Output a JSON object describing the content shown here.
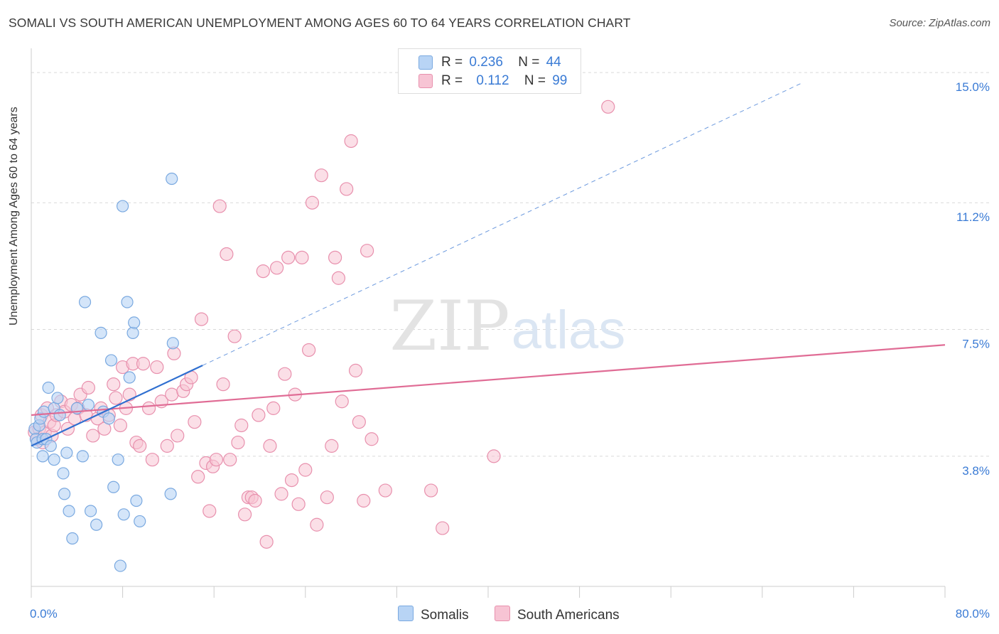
{
  "title": "SOMALI VS SOUTH AMERICAN UNEMPLOYMENT AMONG AGES 60 TO 64 YEARS CORRELATION CHART",
  "source": "Source: ZipAtlas.com",
  "watermark": {
    "zip": "ZIP",
    "atlas": "atlas"
  },
  "legend": {
    "row1": {
      "r_label": "R =",
      "r_value": "0.236",
      "n_label": "N =",
      "n_value": "44"
    },
    "row2": {
      "r_label": "R =",
      "r_value": "0.112",
      "n_label": "N =",
      "n_value": "99"
    }
  },
  "colors": {
    "somali_fill": "#b8d4f5",
    "somali_stroke": "#7aa9e0",
    "somali_line": "#2f6fd0",
    "sa_fill": "#f7c4d4",
    "sa_stroke": "#e890ad",
    "sa_line": "#e06c95",
    "grid": "#d9d9d9",
    "axis_label": "#3a7bd5"
  },
  "chart_data": {
    "type": "scatter",
    "title": "SOMALI VS SOUTH AMERICAN UNEMPLOYMENT AMONG AGES 60 TO 64 YEARS CORRELATION CHART",
    "xlabel": "",
    "ylabel": "Unemployment Among Ages 60 to 64 years",
    "xlim": [
      0,
      80
    ],
    "ylim": [
      0,
      15.5
    ],
    "x_tick_labels": [
      "0.0%",
      "80.0%"
    ],
    "y_ticks": [
      3.8,
      7.5,
      11.2,
      15.0
    ],
    "y_tick_labels": [
      "3.8%",
      "7.5%",
      "11.2%",
      "15.0%"
    ],
    "series": [
      {
        "name": "Somalis",
        "R": 0.236,
        "N": 44,
        "trend": {
          "x0": 0.0,
          "y0": 4.1,
          "x1": 15.0,
          "y1": 6.45,
          "dashed_to_x": 67.5,
          "dashed_to_y": 14.7
        },
        "points": [
          [
            0.3,
            4.6
          ],
          [
            0.4,
            4.3
          ],
          [
            0.5,
            4.2
          ],
          [
            0.7,
            4.7
          ],
          [
            0.8,
            4.9
          ],
          [
            1.0,
            4.3
          ],
          [
            1.1,
            5.1
          ],
          [
            1.3,
            4.3
          ],
          [
            1.5,
            5.8
          ],
          [
            1.7,
            4.1
          ],
          [
            2.0,
            5.2
          ],
          [
            2.3,
            5.5
          ],
          [
            2.5,
            5.0
          ],
          [
            1.0,
            3.8
          ],
          [
            2.0,
            3.7
          ],
          [
            2.8,
            3.3
          ],
          [
            2.9,
            2.7
          ],
          [
            3.1,
            3.9
          ],
          [
            3.3,
            2.2
          ],
          [
            3.6,
            1.4
          ],
          [
            4.0,
            5.2
          ],
          [
            4.5,
            3.8
          ],
          [
            4.7,
            8.3
          ],
          [
            5.0,
            5.3
          ],
          [
            5.2,
            2.2
          ],
          [
            5.7,
            1.8
          ],
          [
            6.1,
            7.4
          ],
          [
            6.3,
            5.1
          ],
          [
            6.8,
            4.9
          ],
          [
            7.0,
            6.6
          ],
          [
            7.2,
            2.9
          ],
          [
            7.6,
            3.7
          ],
          [
            7.8,
            0.6
          ],
          [
            8.0,
            11.1
          ],
          [
            8.1,
            2.1
          ],
          [
            8.4,
            8.3
          ],
          [
            8.6,
            6.1
          ],
          [
            8.9,
            7.4
          ],
          [
            9.0,
            7.7
          ],
          [
            9.2,
            2.5
          ],
          [
            9.5,
            1.9
          ],
          [
            12.2,
            2.7
          ],
          [
            12.4,
            7.1
          ],
          [
            12.3,
            11.9
          ]
        ]
      },
      {
        "name": "South Americans",
        "R": 0.112,
        "N": 99,
        "trend": {
          "x0": 0.0,
          "y0": 5.0,
          "x1": 80.0,
          "y1": 7.05
        },
        "points": [
          [
            0.3,
            4.5
          ],
          [
            0.5,
            4.3
          ],
          [
            0.7,
            4.6
          ],
          [
            0.9,
            5.0
          ],
          [
            1.0,
            4.2
          ],
          [
            1.2,
            4.5
          ],
          [
            1.4,
            5.2
          ],
          [
            1.6,
            4.8
          ],
          [
            1.8,
            4.4
          ],
          [
            2.0,
            4.7
          ],
          [
            2.2,
            5.0
          ],
          [
            2.6,
            5.4
          ],
          [
            2.9,
            5.1
          ],
          [
            3.2,
            4.6
          ],
          [
            3.5,
            5.3
          ],
          [
            3.8,
            4.9
          ],
          [
            4.1,
            5.2
          ],
          [
            4.3,
            5.6
          ],
          [
            4.8,
            5.0
          ],
          [
            5.0,
            5.8
          ],
          [
            5.4,
            4.4
          ],
          [
            5.8,
            4.9
          ],
          [
            6.1,
            5.2
          ],
          [
            6.4,
            4.6
          ],
          [
            6.8,
            5.0
          ],
          [
            7.2,
            5.9
          ],
          [
            7.4,
            5.5
          ],
          [
            7.8,
            4.7
          ],
          [
            8.0,
            6.4
          ],
          [
            8.3,
            5.2
          ],
          [
            8.6,
            5.6
          ],
          [
            8.9,
            6.5
          ],
          [
            9.2,
            4.2
          ],
          [
            9.5,
            4.1
          ],
          [
            9.8,
            6.5
          ],
          [
            10.3,
            5.2
          ],
          [
            10.6,
            3.7
          ],
          [
            11.0,
            6.4
          ],
          [
            11.4,
            5.4
          ],
          [
            11.9,
            4.1
          ],
          [
            12.3,
            5.6
          ],
          [
            12.5,
            6.8
          ],
          [
            12.8,
            4.4
          ],
          [
            13.3,
            5.7
          ],
          [
            13.6,
            5.9
          ],
          [
            14.0,
            6.1
          ],
          [
            14.3,
            4.8
          ],
          [
            14.6,
            3.2
          ],
          [
            14.9,
            7.8
          ],
          [
            15.3,
            3.6
          ],
          [
            15.6,
            2.2
          ],
          [
            15.9,
            3.5
          ],
          [
            16.2,
            3.7
          ],
          [
            16.5,
            11.1
          ],
          [
            16.8,
            5.9
          ],
          [
            17.1,
            9.7
          ],
          [
            17.4,
            3.7
          ],
          [
            17.8,
            7.3
          ],
          [
            18.1,
            4.2
          ],
          [
            18.4,
            4.7
          ],
          [
            18.7,
            2.1
          ],
          [
            19.0,
            2.6
          ],
          [
            19.3,
            2.6
          ],
          [
            19.6,
            2.5
          ],
          [
            19.9,
            5.0
          ],
          [
            20.3,
            9.2
          ],
          [
            20.6,
            1.3
          ],
          [
            20.9,
            4.1
          ],
          [
            21.2,
            5.2
          ],
          [
            21.5,
            9.3
          ],
          [
            21.9,
            2.7
          ],
          [
            22.2,
            6.2
          ],
          [
            22.5,
            9.6
          ],
          [
            22.8,
            3.1
          ],
          [
            23.1,
            5.6
          ],
          [
            23.4,
            2.4
          ],
          [
            23.7,
            9.6
          ],
          [
            24.0,
            3.4
          ],
          [
            24.3,
            6.9
          ],
          [
            24.6,
            11.2
          ],
          [
            25.0,
            1.8
          ],
          [
            25.4,
            12.0
          ],
          [
            25.9,
            2.6
          ],
          [
            26.3,
            4.1
          ],
          [
            26.6,
            9.6
          ],
          [
            26.9,
            9.0
          ],
          [
            27.2,
            5.4
          ],
          [
            27.6,
            11.6
          ],
          [
            28.0,
            13.0
          ],
          [
            28.4,
            6.3
          ],
          [
            28.7,
            4.8
          ],
          [
            29.1,
            2.5
          ],
          [
            29.4,
            9.8
          ],
          [
            29.8,
            4.3
          ],
          [
            31.0,
            2.8
          ],
          [
            35.0,
            2.8
          ],
          [
            36.0,
            1.7
          ],
          [
            40.5,
            3.8
          ],
          [
            50.5,
            14.0
          ]
        ]
      }
    ]
  },
  "bottom_legend": {
    "somalis": "Somalis",
    "south_americans": "South Americans"
  }
}
